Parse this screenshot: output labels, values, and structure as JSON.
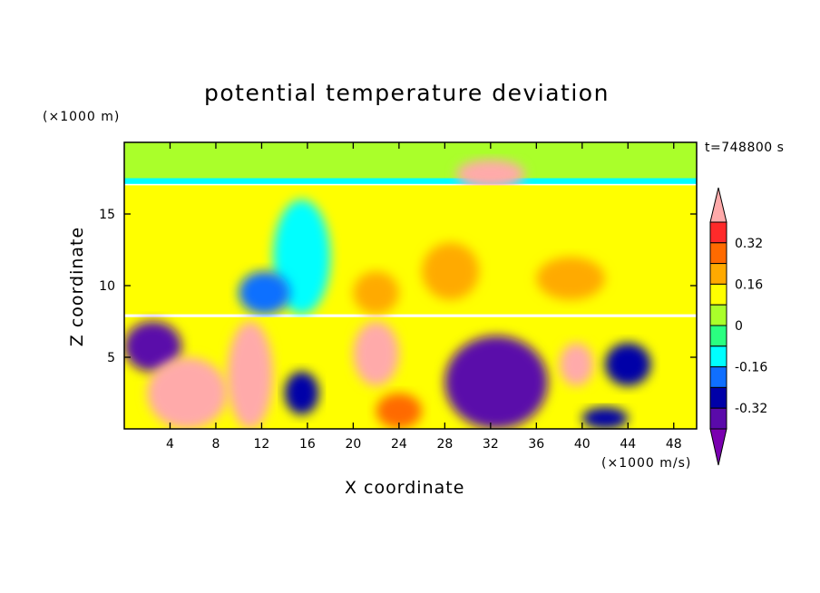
{
  "chart_data": {
    "type": "heatmap",
    "title": "potential temperature deviation",
    "xlabel": "X coordinate",
    "ylabel": "Z coordinate",
    "x_unit": "(×1000 m/s)",
    "y_unit": "(×1000 m)",
    "time_label": "t=748800 s",
    "xlim": [
      0,
      50
    ],
    "ylim": [
      0,
      20
    ],
    "x_ticks": [
      "4",
      "8",
      "12",
      "16",
      "20",
      "24",
      "28",
      "32",
      "36",
      "40",
      "44",
      "48"
    ],
    "y_ticks": [
      "5",
      "10",
      "15"
    ],
    "colorbar": {
      "levels": [
        -0.4,
        -0.32,
        -0.24,
        -0.16,
        -0.08,
        0,
        0.08,
        0.16,
        0.24,
        0.32,
        0.4
      ],
      "tick_labels": [
        "0.32",
        "0.16",
        "0",
        "-0.16",
        "-0.32"
      ],
      "colors": [
        "#ffaaaa",
        "#ff2a2a",
        "#ff6a00",
        "#ffaa00",
        "#ffff00",
        "#aaff2a",
        "#2aff80",
        "#00ffff",
        "#0f6fff",
        "#0000a8",
        "#5a0aaa",
        "#7a00b0"
      ],
      "extend": "both"
    },
    "regions": [
      {
        "x": [
          0,
          50
        ],
        "y": [
          17.5,
          20
        ],
        "value": 0.06
      },
      {
        "x": [
          0,
          50
        ],
        "y": [
          17.1,
          17.5
        ],
        "value": -0.14
      },
      {
        "x": [
          29,
          35
        ],
        "y": [
          16.8,
          18.8
        ],
        "value": 0.45
      },
      {
        "x": [
          0,
          50
        ],
        "y": [
          8,
          17
        ],
        "value": 0.08
      },
      {
        "x": [
          13,
          18
        ],
        "y": [
          8,
          16
        ],
        "value": -0.1
      },
      {
        "x": [
          10,
          14.5
        ],
        "y": [
          8,
          11
        ],
        "value": -0.22
      },
      {
        "x": [
          20,
          24
        ],
        "y": [
          8,
          11
        ],
        "value": 0.2
      },
      {
        "x": [
          26,
          31
        ],
        "y": [
          9,
          13
        ],
        "value": 0.18
      },
      {
        "x": [
          36,
          42
        ],
        "y": [
          9,
          12
        ],
        "value": 0.18
      },
      {
        "x": [
          0,
          50
        ],
        "y": [
          0,
          7.8
        ],
        "value": 0.15
      },
      {
        "x": [
          0,
          5
        ],
        "y": [
          4,
          7.5
        ],
        "value": -0.38
      },
      {
        "x": [
          2,
          9
        ],
        "y": [
          0,
          5
        ],
        "value": 0.45
      },
      {
        "x": [
          9,
          13
        ],
        "y": [
          0,
          7.5
        ],
        "value": 0.42
      },
      {
        "x": [
          14,
          17
        ],
        "y": [
          1,
          4
        ],
        "value": -0.3
      },
      {
        "x": [
          20,
          24
        ],
        "y": [
          3,
          7.5
        ],
        "value": 0.45
      },
      {
        "x": [
          22,
          26
        ],
        "y": [
          0,
          2.5
        ],
        "value": 0.25
      },
      {
        "x": [
          28,
          37
        ],
        "y": [
          0,
          6.5
        ],
        "value": -0.4
      },
      {
        "x": [
          38,
          41
        ],
        "y": [
          3,
          6
        ],
        "value": 0.45
      },
      {
        "x": [
          42,
          46
        ],
        "y": [
          3,
          6
        ],
        "value": -0.3
      },
      {
        "x": [
          40,
          44
        ],
        "y": [
          0,
          1.5
        ],
        "value": -0.32
      }
    ]
  }
}
